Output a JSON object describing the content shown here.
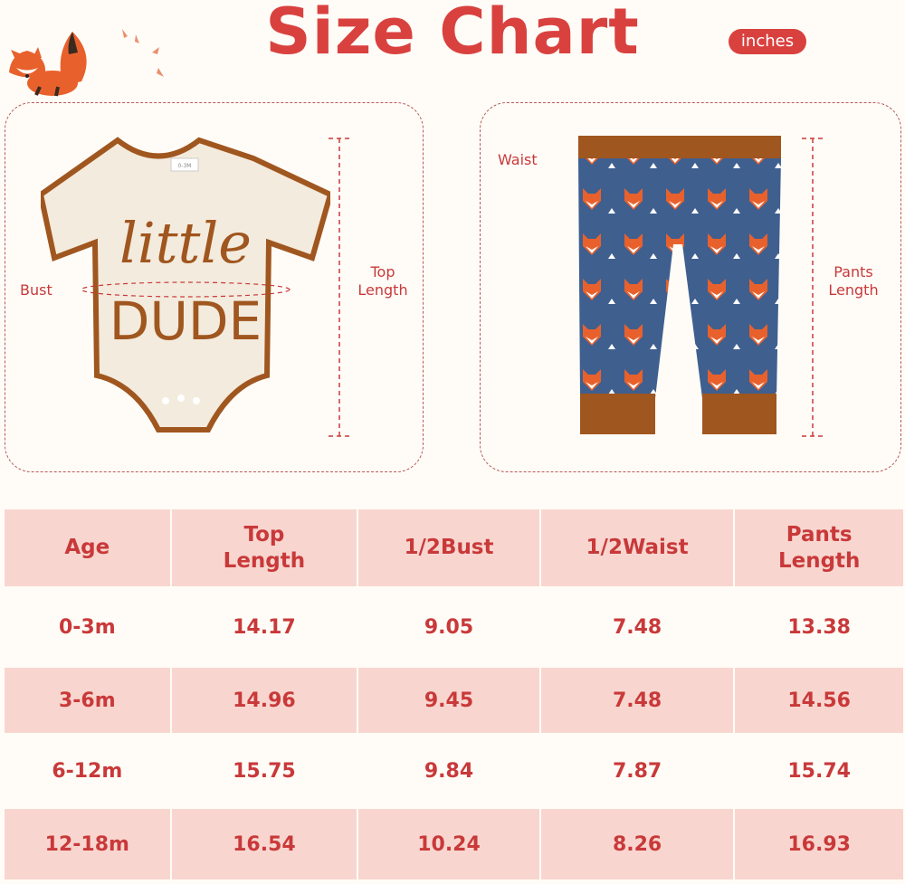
{
  "title": "Size Chart",
  "unit_badge": "inches",
  "top_panel": {
    "tag_text": "0-3M",
    "print_line1": "little",
    "print_line2": "DUDE",
    "bust_label": "Bust",
    "top_length_label": [
      "Top",
      "Length"
    ]
  },
  "pants_panel": {
    "waist_label": "Waist",
    "pants_length_label": [
      "Pants",
      "Length"
    ]
  },
  "colors": {
    "accent": "#d9413f",
    "header_bg": "#f8d6cf",
    "background": "#fffcf7",
    "trim": "#a0561f",
    "pants": "#3f5f8f"
  },
  "table": {
    "headers": [
      [
        "Age"
      ],
      [
        "Top",
        "Length"
      ],
      [
        "1/2Bust"
      ],
      [
        "1/2Waist"
      ],
      [
        "Pants",
        "Length"
      ]
    ],
    "rows": [
      [
        "0-3m",
        "14.17",
        "9.05",
        "7.48",
        "13.38"
      ],
      [
        "3-6m",
        "14.96",
        "9.45",
        "7.48",
        "14.56"
      ],
      [
        "6-12m",
        "15.75",
        "9.84",
        "7.87",
        "15.74"
      ],
      [
        "12-18m",
        "16.54",
        "10.24",
        "8.26",
        "16.93"
      ]
    ]
  }
}
